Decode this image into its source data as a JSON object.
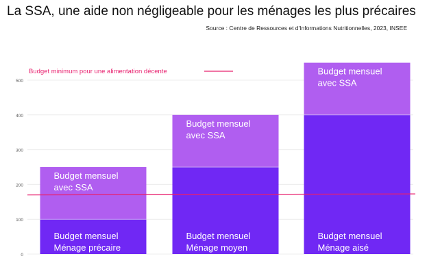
{
  "title": "La SSA, une aide non négligeable pour les ménages les plus précaires",
  "source": "Source : Centre de Ressources et d'Informations Nutritionnelles, 2023, INSEE",
  "chart_data": {
    "type": "bar",
    "stacked": true,
    "categories": [
      "Ménage précaire",
      "Ménage moyen",
      "Ménage aisé"
    ],
    "series": [
      {
        "name": "Budget mensuel",
        "values": [
          100,
          250,
          400
        ],
        "color": "#7028f4",
        "labels": [
          "Budget mensuel\nMénage précaire",
          "Budget mensuel\nMénage moyen",
          "Budget mensuel\nMénage aisé"
        ]
      },
      {
        "name": "Budget mensuel avec SSA",
        "values": [
          150,
          150,
          150
        ],
        "color": "#b05ef0",
        "labels": [
          "Budget mensuel\navec SSA",
          "Budget mensuel\navec SSA",
          "Budget mensuel\navec SSA"
        ]
      }
    ],
    "ylim": [
      0,
      550
    ],
    "yticks": [
      0,
      100,
      200,
      300,
      400,
      500
    ],
    "grid": true,
    "reference_line": {
      "label": "Budget minimum pour une alimentation décente",
      "y_start": 170,
      "y_end": 173,
      "color": "#e8206e"
    },
    "xlabel": "",
    "ylabel": ""
  }
}
